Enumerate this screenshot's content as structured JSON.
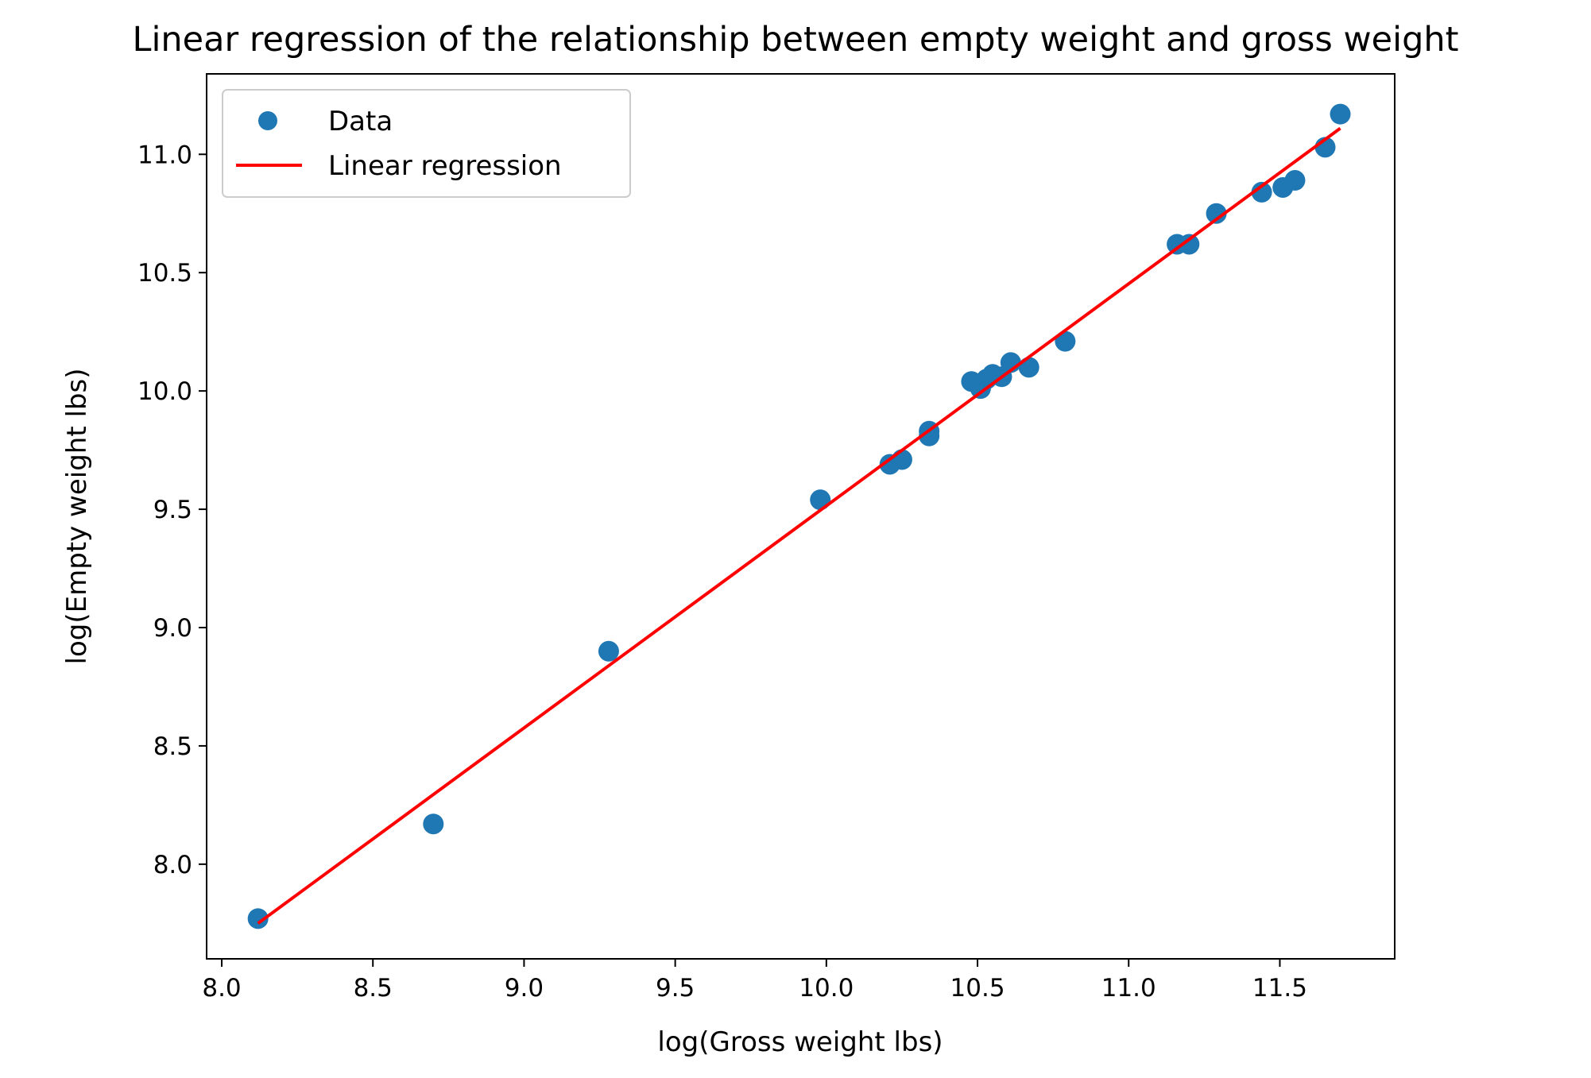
{
  "chart_data": {
    "type": "scatter",
    "title": "Linear regression of the relationship between empty weight and gross weight",
    "xlabel": "log(Gross weight lbs)",
    "ylabel": "log(Empty weight lbs)",
    "xlim": [
      7.95,
      11.88
    ],
    "ylim": [
      7.6,
      11.34
    ],
    "xticks": [
      8.0,
      8.5,
      9.0,
      9.5,
      10.0,
      10.5,
      11.0,
      11.5
    ],
    "xtick_labels": [
      "8.0",
      "8.5",
      "9.0",
      "9.5",
      "10.0",
      "10.5",
      "11.0",
      "11.5"
    ],
    "yticks": [
      8.0,
      8.5,
      9.0,
      9.5,
      10.0,
      10.5,
      11.0
    ],
    "ytick_labels": [
      "8.0",
      "8.5",
      "9.0",
      "9.5",
      "10.0",
      "10.5",
      "11.0"
    ],
    "grid": false,
    "legend_position": "top-left",
    "series": [
      {
        "name": "Data",
        "kind": "scatter",
        "color": "#1f77b4",
        "points": [
          [
            8.12,
            7.77
          ],
          [
            8.7,
            8.17
          ],
          [
            9.28,
            8.9
          ],
          [
            9.98,
            9.54
          ],
          [
            10.21,
            9.69
          ],
          [
            10.25,
            9.71
          ],
          [
            10.34,
            9.83
          ],
          [
            10.34,
            9.81
          ],
          [
            10.48,
            10.04
          ],
          [
            10.51,
            10.01
          ],
          [
            10.53,
            10.05
          ],
          [
            10.55,
            10.07
          ],
          [
            10.58,
            10.06
          ],
          [
            10.61,
            10.12
          ],
          [
            10.67,
            10.1
          ],
          [
            10.79,
            10.21
          ],
          [
            11.16,
            10.62
          ],
          [
            11.2,
            10.62
          ],
          [
            11.29,
            10.75
          ],
          [
            11.44,
            10.84
          ],
          [
            11.51,
            10.86
          ],
          [
            11.55,
            10.89
          ],
          [
            11.65,
            11.03
          ],
          [
            11.7,
            11.17
          ]
        ]
      },
      {
        "name": "Linear regression",
        "kind": "line",
        "color": "#ff0000",
        "points": [
          [
            8.12,
            7.75
          ],
          [
            11.7,
            11.11
          ]
        ]
      }
    ]
  }
}
